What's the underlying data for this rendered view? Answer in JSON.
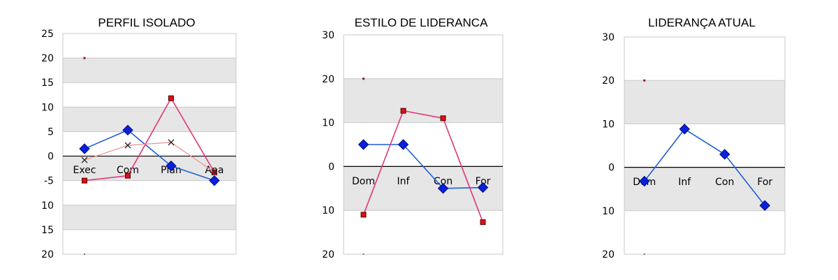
{
  "chart_data": [
    {
      "type": "line",
      "title": "PERFIL ISOLADO",
      "categories": [
        "Exec",
        "Com",
        "Plan",
        "Ana"
      ],
      "ylim": [
        -20,
        25
      ],
      "yticks": [
        25,
        20,
        15,
        10,
        5,
        0,
        -5,
        -10,
        -15,
        -20
      ],
      "ytick_labels": [
        "25",
        "20",
        "15",
        "10",
        "5",
        "0",
        "-5",
        "10",
        "15",
        "20"
      ],
      "grid": true,
      "series": [
        {
          "values": [
            1.5,
            5.3,
            -2,
            -5
          ],
          "color": "#1f5fd6",
          "marker": "diamond"
        },
        {
          "values": [
            -5,
            -4,
            11.8,
            -3.3
          ],
          "color": "#e0357a",
          "marker": "square"
        },
        {
          "values": [
            -0.8,
            2.2,
            2.8,
            -3.3
          ],
          "color": "#f08f8f",
          "marker": "x"
        }
      ],
      "top_marker": 20,
      "bottom_marker": -20
    },
    {
      "type": "line",
      "title": "ESTILO DE LIDERANCA",
      "categories": [
        "Dom",
        "Inf",
        "Con",
        "For"
      ],
      "ylim": [
        -20,
        30
      ],
      "yticks": [
        30,
        20,
        10,
        0,
        -10,
        -20
      ],
      "ytick_labels": [
        "30",
        "20",
        "10",
        "0",
        "10",
        "20"
      ],
      "grid": true,
      "series": [
        {
          "values": [
            5,
            5,
            -5,
            -4.8
          ],
          "color": "#1f5fd6",
          "marker": "diamond"
        },
        {
          "values": [
            -11,
            12.7,
            11,
            -12.7
          ],
          "color": "#e0357a",
          "marker": "square"
        }
      ],
      "top_marker": 20,
      "bottom_marker": -20
    },
    {
      "type": "line",
      "title": "LIDERANÇA ATUAL",
      "categories": [
        "Dom",
        "Inf",
        "Con",
        "For"
      ],
      "ylim": [
        -20,
        30
      ],
      "yticks": [
        30,
        20,
        10,
        0,
        -10,
        -20
      ],
      "ytick_labels": [
        "30",
        "20",
        "10",
        "0",
        "10",
        "20"
      ],
      "grid": true,
      "series": [
        {
          "values": [
            -3.2,
            8.8,
            3,
            -8.8
          ],
          "color": "#1f5fd6",
          "marker": "diamond"
        }
      ],
      "top_marker": 20,
      "bottom_marker": -20
    }
  ]
}
